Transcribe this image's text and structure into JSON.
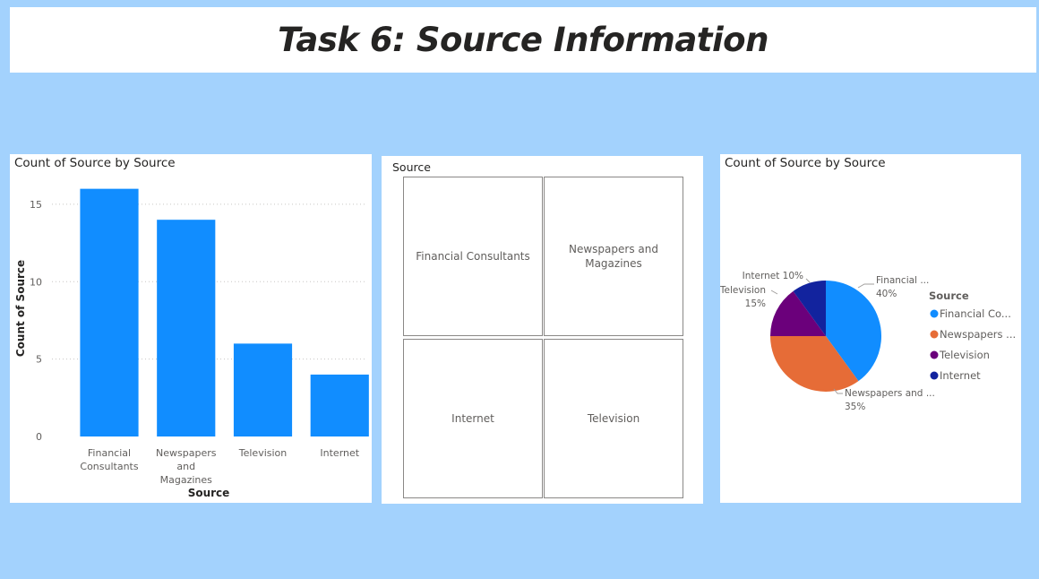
{
  "page": {
    "title": "Task 6: Source Information"
  },
  "bar_visual": {
    "title": "Count of Source by Source"
  },
  "slicer": {
    "header": "Source",
    "tiles": [
      "Financial Consultants",
      "Newspapers and Magazines",
      "Internet",
      "Television"
    ]
  },
  "pie_visual": {
    "title": "Count of Source by Source"
  },
  "chart_data": [
    {
      "type": "bar",
      "title": "Count of Source by Source",
      "xlabel": "Source",
      "ylabel": "Count of Source",
      "categories": [
        "Financial Consultants",
        "Newspapers and Magazines",
        "Television",
        "Internet"
      ],
      "category_tick_lines": [
        [
          "Financial",
          "Consultants"
        ],
        [
          "Newspapers",
          "and",
          "Magazines"
        ],
        [
          "Television"
        ],
        [
          "Internet"
        ]
      ],
      "values": [
        16,
        14,
        6,
        4
      ],
      "ylim": [
        0,
        16.5
      ],
      "yticks": [
        0,
        5,
        10,
        15
      ],
      "grid": true,
      "color": "#118dff"
    },
    {
      "type": "pie",
      "title": "Count of Source by Source",
      "legend_title": "Source",
      "legend_position": "right",
      "slices": [
        {
          "label": "Financial Consultants",
          "value": 40,
          "color": "#118dff",
          "legend_text": "Financial Co...",
          "data_label": [
            "Financial ...",
            "40%"
          ]
        },
        {
          "label": "Newspapers and Magazines",
          "value": 35,
          "color": "#e66c37",
          "legend_text": "Newspapers ...",
          "data_label": [
            "Newspapers and ...",
            "35%"
          ]
        },
        {
          "label": "Television",
          "value": 15,
          "color": "#6b007b",
          "legend_text": "Television",
          "data_label": [
            "Television",
            "15%"
          ]
        },
        {
          "label": "Internet",
          "value": 10,
          "color": "#12239e",
          "legend_text": "Internet",
          "data_label": [
            "Internet 10%"
          ]
        }
      ]
    }
  ]
}
